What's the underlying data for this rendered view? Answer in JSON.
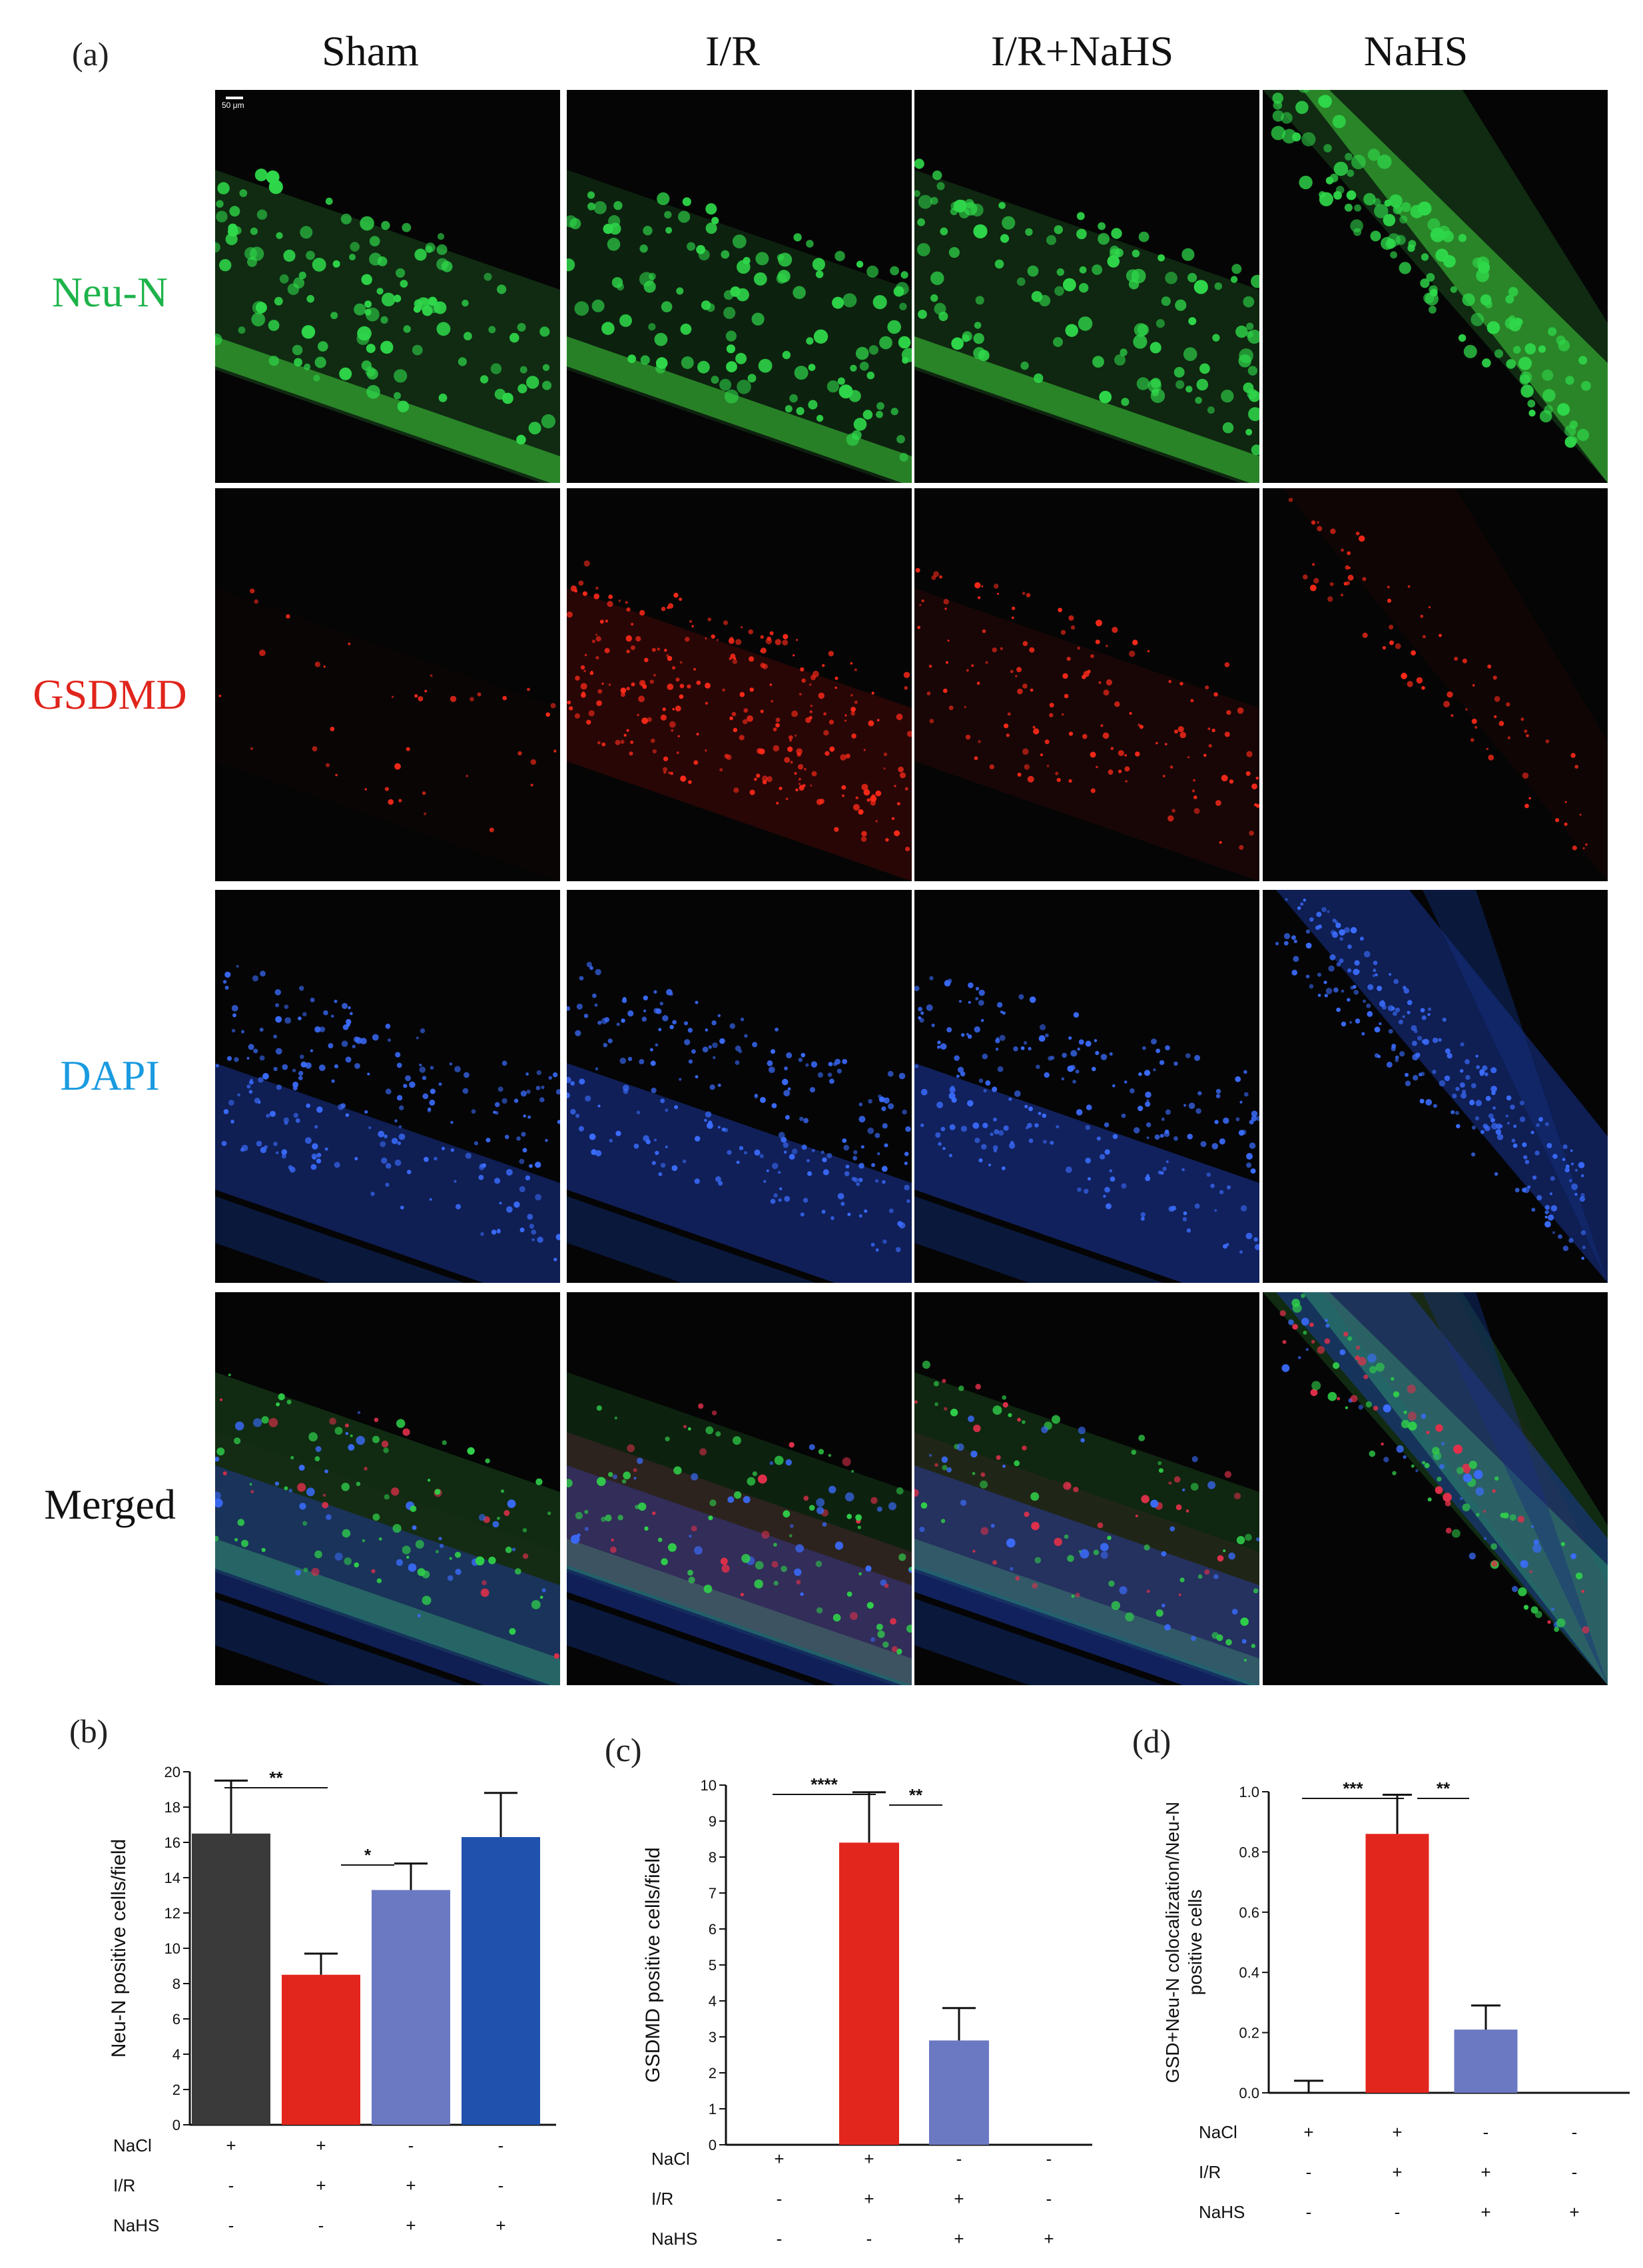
{
  "figure": {
    "panel_a": "(a)",
    "panel_b": "(b)",
    "panel_c": "(c)",
    "panel_d": "(d)",
    "columns": [
      "Sham",
      "I/R",
      "I/R+NaHS",
      "NaHS"
    ],
    "rows": [
      {
        "label": "Neu-N",
        "color": "#1db34a"
      },
      {
        "label": "GSDMD",
        "color": "#e0251c"
      },
      {
        "label": "DAPI",
        "color": "#1a9be0"
      },
      {
        "label": "Merged",
        "color": "#111111"
      }
    ],
    "scale_bar": "50 μm"
  },
  "chart_data": [
    {
      "type": "bar",
      "panel": "(b)",
      "ylabel": "Neu-N positive cells/field",
      "ylim": [
        0,
        20
      ],
      "yticks": [
        "0",
        "2",
        "4",
        "6",
        "8",
        "10",
        "12",
        "14",
        "16",
        "18",
        "20"
      ],
      "values": [
        16.5,
        8.5,
        13.3,
        16.3
      ],
      "errors": [
        3.0,
        1.2,
        1.5,
        2.5
      ],
      "colors": [
        "#3a3a3a",
        "#e3261d",
        "#6b78c2",
        "#2051ac"
      ],
      "significance": [
        {
          "from": 0,
          "to": 1,
          "label": "**"
        },
        {
          "from": 1,
          "to": 2,
          "label": "*"
        }
      ],
      "conditions": [
        {
          "name": "NaCl",
          "marks": [
            "+",
            "+",
            "-",
            "-"
          ]
        },
        {
          "name": "I/R",
          "marks": [
            "-",
            "+",
            "+",
            "-"
          ]
        },
        {
          "name": "NaHS",
          "marks": [
            "-",
            "-",
            "+",
            "+"
          ]
        }
      ]
    },
    {
      "type": "bar",
      "panel": "(c)",
      "ylabel": "GSDMD positive cells/field",
      "ylim": [
        0,
        10
      ],
      "yticks": [
        "0",
        "1",
        "2",
        "3",
        "4",
        "5",
        "6",
        "7",
        "8",
        "9",
        "10"
      ],
      "values": [
        0,
        8.4,
        2.9,
        0
      ],
      "errors": [
        0,
        1.4,
        0.9,
        0
      ],
      "colors": [
        "#3a3a3a",
        "#e3261d",
        "#6b78c2",
        "#2051ac"
      ],
      "significance": [
        {
          "from": 0,
          "to": 1,
          "label": "****"
        },
        {
          "from": 1,
          "to": 2,
          "label": "**"
        }
      ],
      "conditions": [
        {
          "name": "NaCl",
          "marks": [
            "+",
            "+",
            "-",
            "-"
          ]
        },
        {
          "name": "I/R",
          "marks": [
            "-",
            "+",
            "+",
            "-"
          ]
        },
        {
          "name": "NaHS",
          "marks": [
            "-",
            "-",
            "+",
            "+"
          ]
        }
      ]
    },
    {
      "type": "bar",
      "panel": "(d)",
      "ylabel": "GSD+Neu-N colocalization/Neu-N positive cells",
      "ylim": [
        0,
        1.0
      ],
      "yticks": [
        "0.0",
        "0.2",
        "0.4",
        "0.6",
        "0.8",
        "1.0"
      ],
      "values": [
        0.0,
        0.86,
        0.21,
        0.0
      ],
      "errors": [
        0.04,
        0.13,
        0.08,
        0
      ],
      "colors": [
        "#3a3a3a",
        "#e3261d",
        "#6b78c2",
        "#2051ac"
      ],
      "significance": [
        {
          "from": 0,
          "to": 1,
          "label": "***"
        },
        {
          "from": 1,
          "to": 2,
          "label": "**"
        }
      ],
      "conditions": [
        {
          "name": "NaCl",
          "marks": [
            "+",
            "+",
            "-",
            "-"
          ]
        },
        {
          "name": "I/R",
          "marks": [
            "-",
            "+",
            "+",
            "-"
          ]
        },
        {
          "name": "NaHS",
          "marks": [
            "-",
            "-",
            "+",
            "+"
          ]
        }
      ]
    }
  ]
}
